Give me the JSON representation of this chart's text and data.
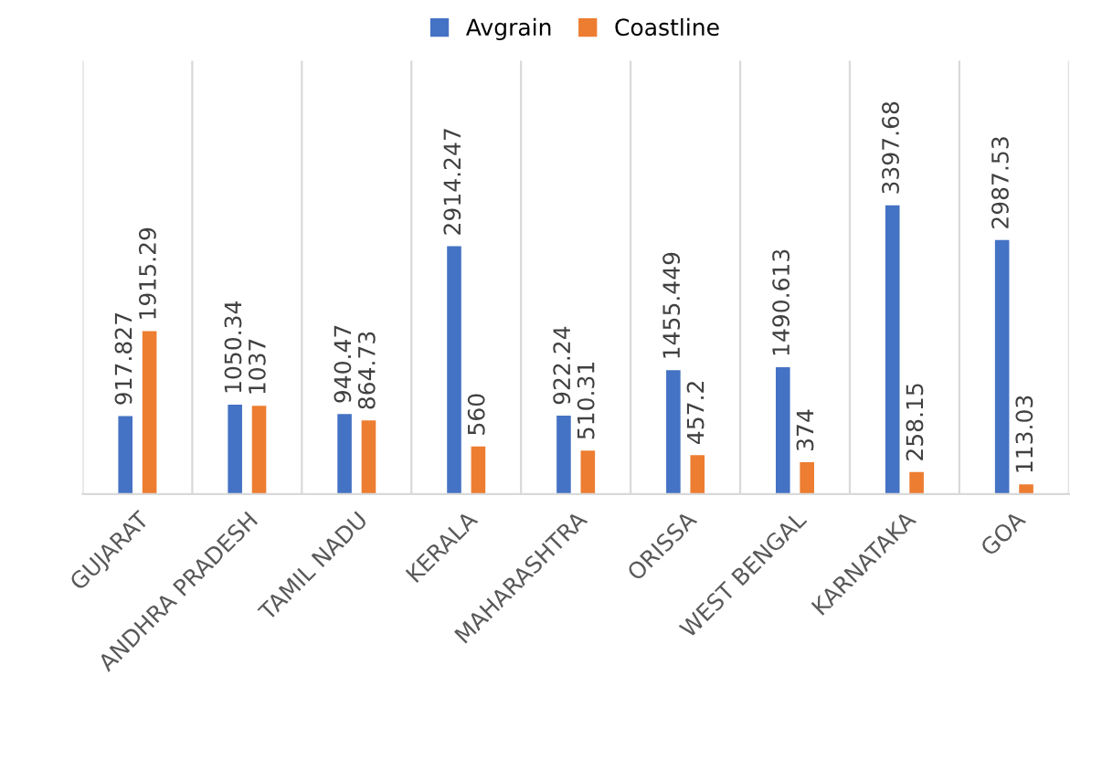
{
  "chart_data": {
    "type": "bar",
    "categories": [
      "GUJARAT",
      "ANDHRA PRADESH",
      "TAMIL NADU",
      "KERALA",
      "MAHARASHTRA",
      "ORISSA",
      "WEST BENGAL",
      "KARNATAKA",
      "GOA"
    ],
    "series": [
      {
        "name": "Avgrain",
        "color": "#4472c4",
        "values": [
          917.827,
          1050.34,
          940.47,
          2914.247,
          922.24,
          1455.449,
          1490.613,
          3397.68,
          2987.53
        ]
      },
      {
        "name": "Coastline",
        "color": "#ed7d31",
        "values": [
          1915.29,
          1037,
          864.73,
          560,
          510.31,
          457.2,
          374,
          258.15,
          113.03
        ]
      }
    ],
    "data_labels": true,
    "grid": "x",
    "legend": "top",
    "tick_labels": "x"
  }
}
